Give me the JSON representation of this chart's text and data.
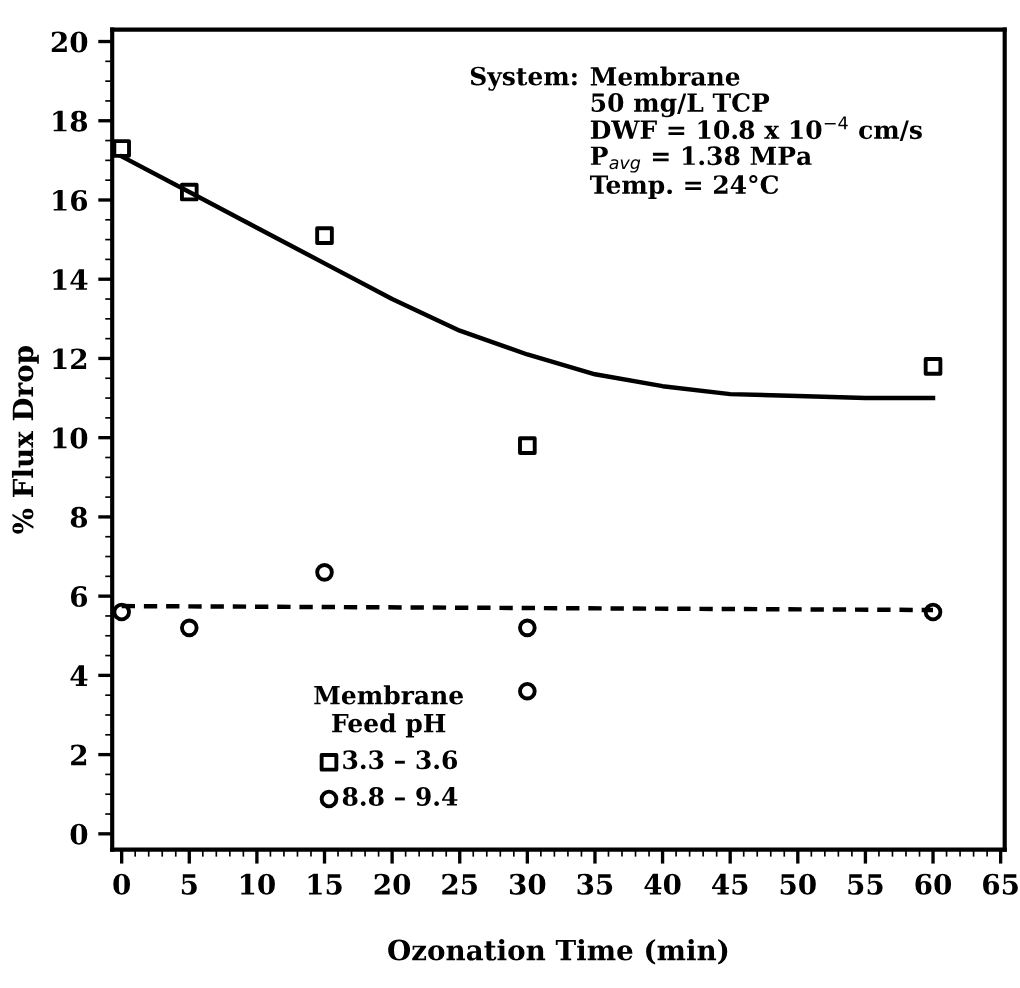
{
  "chart_data": {
    "type": "scatter",
    "xlabel": "Ozonation Time (min)",
    "ylabel": "% Flux Drop",
    "legend_title": "Membrane\nFeed pH",
    "legend": "bottom left",
    "xlim": [
      -0.7,
      65.3
    ],
    "xticks": [
      0,
      5,
      10,
      15,
      20,
      25,
      30,
      35,
      40,
      45,
      50,
      55,
      60,
      65
    ],
    "ylim": [
      -0.4,
      20.3
    ],
    "yticks": [
      0,
      2,
      4,
      6,
      8,
      10,
      12,
      14,
      16,
      18,
      20
    ],
    "grid": false,
    "annotations": [
      "System:",
      "Membrane\n50 mg/L TCP\nDWF = 10.8 x 10$^{−4}$ cm/s\nP$_{avg}$ = 1.38 MPa\nTemp. = 24°C"
    ],
    "series": [
      {
        "name": "3.3 – 3.6",
        "color": "#000000",
        "marker": "square",
        "x": [
          0,
          5,
          15,
          30,
          60
        ],
        "values": [
          17.3,
          16.2,
          15.1,
          9.8,
          11.8
        ]
      },
      {
        "name": "8.8 – 9.4",
        "color": "#000000",
        "marker": "circle",
        "x": [
          0,
          5,
          15,
          30,
          30,
          60
        ],
        "values": [
          5.6,
          5.2,
          6.6,
          5.2,
          3.6,
          5.6
        ]
      },
      {
        "type": "line",
        "color": "#000000",
        "line_style": "solid",
        "x": [
          0,
          5,
          10,
          15,
          20,
          25,
          30,
          35,
          40,
          45,
          50,
          55,
          60
        ],
        "values": [
          17.1,
          16.2,
          15.3,
          14.4,
          13.5,
          12.7,
          12.1,
          11.6,
          11.3,
          11.1,
          11.05,
          11.0,
          11.0
        ]
      },
      {
        "type": "line",
        "color": "#000000",
        "line_style": "dotted",
        "x": [
          0,
          60
        ],
        "values": [
          5.75,
          5.65
        ]
      }
    ]
  }
}
